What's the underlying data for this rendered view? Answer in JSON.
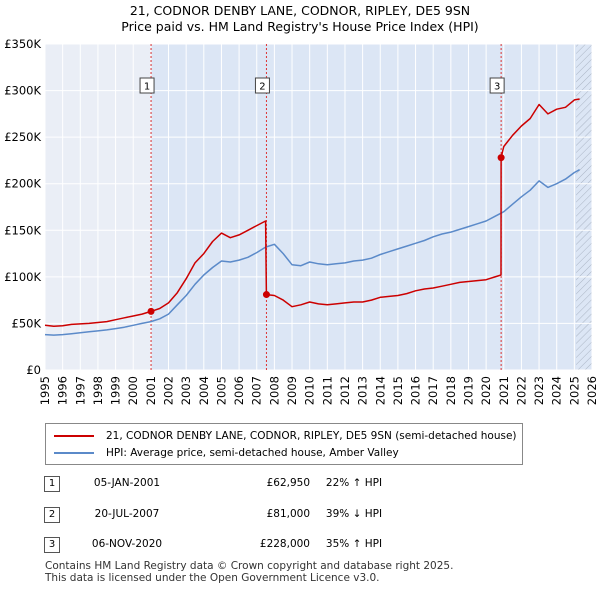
{
  "title_line1": "21, CODNOR DENBY LANE, CODNOR, RIPLEY, DE5 9SN",
  "title_line2": "Price paid vs. HM Land Registry's House Price Index (HPI)",
  "legend": {
    "red_label": "21, CODNOR DENBY LANE, CODNOR, RIPLEY, DE5 9SN (semi-detached house)",
    "blue_label": "HPI: Average price, semi-detached house, Amber Valley"
  },
  "transactions": [
    {
      "num": "1",
      "date": "05-JAN-2001",
      "price": "£62,950",
      "hpi": "22% ↑ HPI"
    },
    {
      "num": "2",
      "date": "20-JUL-2007",
      "price": "£81,000",
      "hpi": "39% ↓ HPI"
    },
    {
      "num": "3",
      "date": "06-NOV-2020",
      "price": "£228,000",
      "hpi": "35% ↑ HPI"
    }
  ],
  "footer": {
    "line1": "Contains HM Land Registry data © Crown copyright and database right 2025.",
    "line2": "This data is licensed under the Open Government Licence v3.0."
  },
  "colors": {
    "red": "#cc0000",
    "blue": "#5b8ac9",
    "shade": "#dce6f5",
    "grid": "#ffffff"
  },
  "chart_data": {
    "type": "line",
    "title": "21, CODNOR DENBY LANE, CODNOR, RIPLEY, DE5 9SN — Price paid vs. HM Land Registry's House Price Index (HPI)",
    "xlim": [
      1995,
      2026
    ],
    "ylim": [
      0,
      350000
    ],
    "y_ticks": [
      0,
      50000,
      100000,
      150000,
      200000,
      250000,
      300000,
      350000
    ],
    "y_tick_labels": [
      "£0",
      "£50K",
      "£100K",
      "£150K",
      "£200K",
      "£250K",
      "£300K",
      "£350K"
    ],
    "x_ticks": [
      "1995",
      "1996",
      "1997",
      "1998",
      "1999",
      "2000",
      "2001",
      "2002",
      "2003",
      "2004",
      "2005",
      "2006",
      "2007",
      "2008",
      "2009",
      "2010",
      "2011",
      "2012",
      "2013",
      "2014",
      "2015",
      "2016",
      "2017",
      "2018",
      "2019",
      "2020",
      "2021",
      "2022",
      "2023",
      "2024",
      "2025",
      "2026"
    ],
    "shaded_from": 2001.0,
    "hatched_from": 2025.1,
    "markers": [
      {
        "label": "1",
        "x": 2001.01,
        "y": 62950
      },
      {
        "label": "2",
        "x": 2007.55,
        "y": 81000
      },
      {
        "label": "3",
        "x": 2020.85,
        "y": 228000
      }
    ],
    "series": [
      {
        "name": "21, CODNOR DENBY LANE, CODNOR, RIPLEY, DE5 9SN (semi-detached house)",
        "color": "#cc0000",
        "x": [
          1995.0,
          1995.5,
          1996.0,
          1996.5,
          1997.0,
          1997.5,
          1998.0,
          1998.5,
          1999.0,
          1999.5,
          2000.0,
          2000.5,
          2001.01,
          2001.5,
          2002.0,
          2002.5,
          2003.0,
          2003.5,
          2004.0,
          2004.5,
          2005.0,
          2005.5,
          2006.0,
          2006.5,
          2007.0,
          2007.5,
          2007.55,
          2008.0,
          2008.5,
          2009.0,
          2009.5,
          2010.0,
          2010.5,
          2011.0,
          2011.5,
          2012.0,
          2012.5,
          2013.0,
          2013.5,
          2014.0,
          2014.5,
          2015.0,
          2015.5,
          2016.0,
          2016.5,
          2017.0,
          2017.5,
          2018.0,
          2018.5,
          2019.0,
          2019.5,
          2020.0,
          2020.5,
          2020.84,
          2020.85,
          2021.0,
          2021.5,
          2022.0,
          2022.5,
          2023.0,
          2023.5,
          2024.0,
          2024.5,
          2025.0,
          2025.3
        ],
        "y": [
          48000,
          47000,
          47500,
          49000,
          49500,
          50000,
          51000,
          52000,
          54000,
          56000,
          58000,
          60000,
          62950,
          66000,
          72000,
          83000,
          98000,
          115000,
          125000,
          138000,
          147000,
          142000,
          145000,
          150000,
          155000,
          160000,
          81000,
          80000,
          75000,
          68000,
          70000,
          73000,
          71000,
          70000,
          71000,
          72000,
          73000,
          73000,
          75000,
          78000,
          79000,
          80000,
          82000,
          85000,
          87000,
          88000,
          90000,
          92000,
          94000,
          95000,
          96000,
          97000,
          100000,
          102000,
          228000,
          240000,
          252000,
          262000,
          270000,
          285000,
          275000,
          280000,
          282000,
          290000,
          291000
        ]
      },
      {
        "name": "HPI: Average price, semi-detached house, Amber Valley",
        "color": "#5b8ac9",
        "x": [
          1995.0,
          1995.5,
          1996.0,
          1996.5,
          1997.0,
          1997.5,
          1998.0,
          1998.5,
          1999.0,
          1999.5,
          2000.0,
          2000.5,
          2001.0,
          2001.5,
          2002.0,
          2002.5,
          2003.0,
          2003.5,
          2004.0,
          2004.5,
          2005.0,
          2005.5,
          2006.0,
          2006.5,
          2007.0,
          2007.5,
          2008.0,
          2008.5,
          2009.0,
          2009.5,
          2010.0,
          2010.5,
          2011.0,
          2011.5,
          2012.0,
          2012.5,
          2013.0,
          2013.5,
          2014.0,
          2014.5,
          2015.0,
          2015.5,
          2016.0,
          2016.5,
          2017.0,
          2017.5,
          2018.0,
          2018.5,
          2019.0,
          2019.5,
          2020.0,
          2020.5,
          2021.0,
          2021.5,
          2022.0,
          2022.5,
          2023.0,
          2023.5,
          2024.0,
          2024.5,
          2025.0,
          2025.3
        ],
        "y": [
          38000,
          37500,
          38000,
          39000,
          40000,
          41000,
          42000,
          43000,
          44500,
          46000,
          48000,
          50000,
          52000,
          55000,
          60000,
          70000,
          80000,
          92000,
          102000,
          110000,
          117000,
          116000,
          118000,
          121000,
          126000,
          132000,
          135000,
          125000,
          113000,
          112000,
          116000,
          114000,
          113000,
          114000,
          115000,
          117000,
          118000,
          120000,
          124000,
          127000,
          130000,
          133000,
          136000,
          139000,
          143000,
          146000,
          148000,
          151000,
          154000,
          157000,
          160000,
          165000,
          170000,
          178000,
          186000,
          193000,
          203000,
          196000,
          200000,
          205000,
          212000,
          215000
        ]
      }
    ]
  }
}
